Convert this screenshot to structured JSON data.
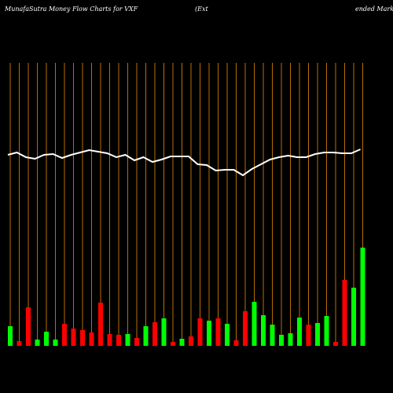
{
  "chart_data": {
    "type": "money-flow",
    "title": "MunafaSutra  Money Flow  Charts for VXF",
    "subtitle_parts": [
      "(Ext",
      "ended Mark"
    ],
    "categories": [
      null,
      null,
      null,
      null,
      null,
      null,
      null,
      null,
      null,
      null,
      null,
      null,
      null,
      null,
      null,
      null,
      null,
      null,
      null,
      null,
      null,
      null,
      null,
      null,
      null,
      null,
      null,
      null,
      null,
      null,
      null,
      null,
      null,
      null,
      null,
      null,
      null,
      null,
      null,
      null
    ],
    "bar_values": [
      25,
      6,
      49,
      8,
      18,
      8,
      28,
      22,
      20,
      17,
      55,
      15,
      14,
      15,
      10,
      25,
      30,
      35,
      5,
      9,
      12,
      35,
      32,
      35,
      28,
      7,
      44,
      56,
      39,
      27,
      14,
      16,
      36,
      27,
      29,
      38,
      5,
      84,
      74,
      125
    ],
    "bar_colors": [
      "#00ff00",
      "#ff0000",
      "#ff0000",
      "#00ff00",
      "#00ff00",
      "#00ff00",
      "#ff0000",
      "#ff0000",
      "#ff0000",
      "#ff0000",
      "#ff0000",
      "#ff0000",
      "#ff0000",
      "#00ff00",
      "#ff0000",
      "#00ff00",
      "#ff0000",
      "#00ff00",
      "#ff0000",
      "#00ff00",
      "#ff0000",
      "#ff0000",
      "#00ff00",
      "#ff0000",
      "#00ff00",
      "#ff0000",
      "#ff0000",
      "#00ff00",
      "#00ff00",
      "#00ff00",
      "#00ff00",
      "#00ff00",
      "#00ff00",
      "#ff0000",
      "#00ff00",
      "#00ff00",
      "#ff0000",
      "#ff0000",
      "#00ff00",
      "#00ff00"
    ],
    "line_values": [
      243,
      246,
      240,
      238,
      243,
      244,
      239,
      243,
      246,
      249,
      247,
      245,
      240,
      243,
      236,
      240,
      234,
      237,
      241,
      241,
      241,
      231,
      230,
      223,
      224,
      224,
      217,
      225,
      231,
      237,
      240,
      242,
      240,
      240,
      244,
      246,
      246,
      245,
      245,
      250
    ],
    "line_color": "#ffffff",
    "grid_color": "#b86e00",
    "ylim": [
      0,
      360
    ]
  }
}
